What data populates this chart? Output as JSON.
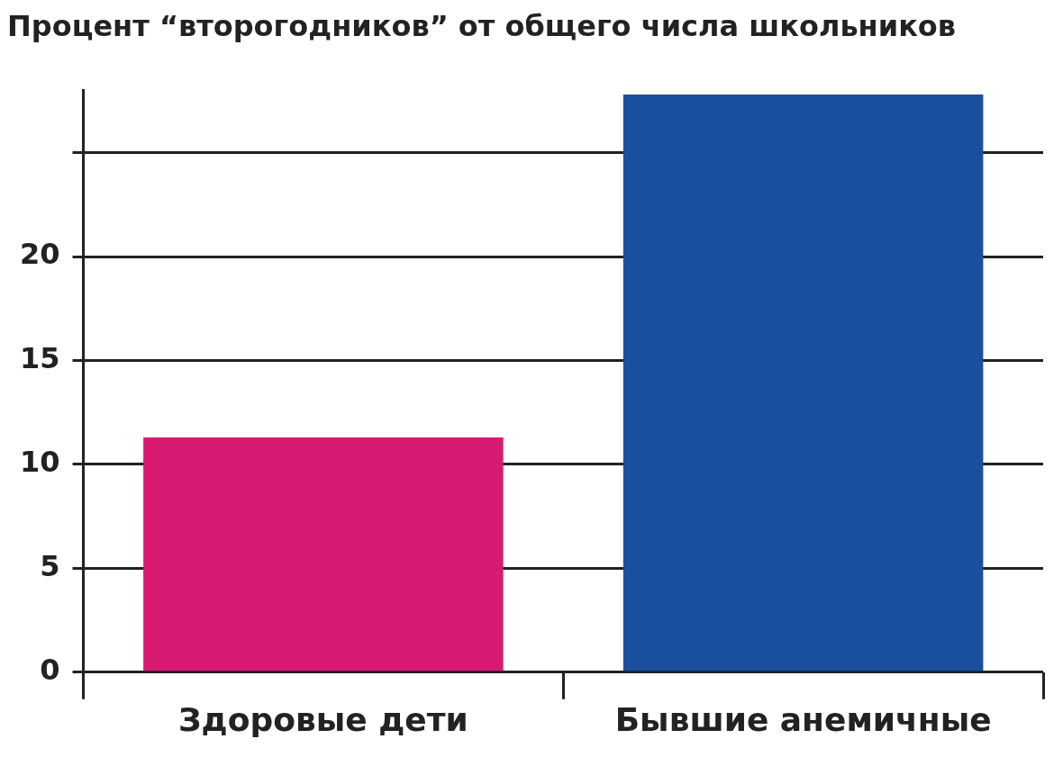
{
  "chart_data": {
    "type": "bar",
    "title": "Процент “второгодников” от общего числа школьников",
    "categories": [
      "Здоровые дети",
      "Бывшие анемичные"
    ],
    "values": [
      11.3,
      27.8
    ],
    "colors": [
      "#d81b72",
      "#1a4f9e"
    ],
    "ylim": [
      0,
      28
    ],
    "yticks": [
      0,
      5,
      10,
      15,
      20,
      {
        "value": 25,
        "label": null
      }
    ],
    "grid": "y",
    "legend": false
  }
}
